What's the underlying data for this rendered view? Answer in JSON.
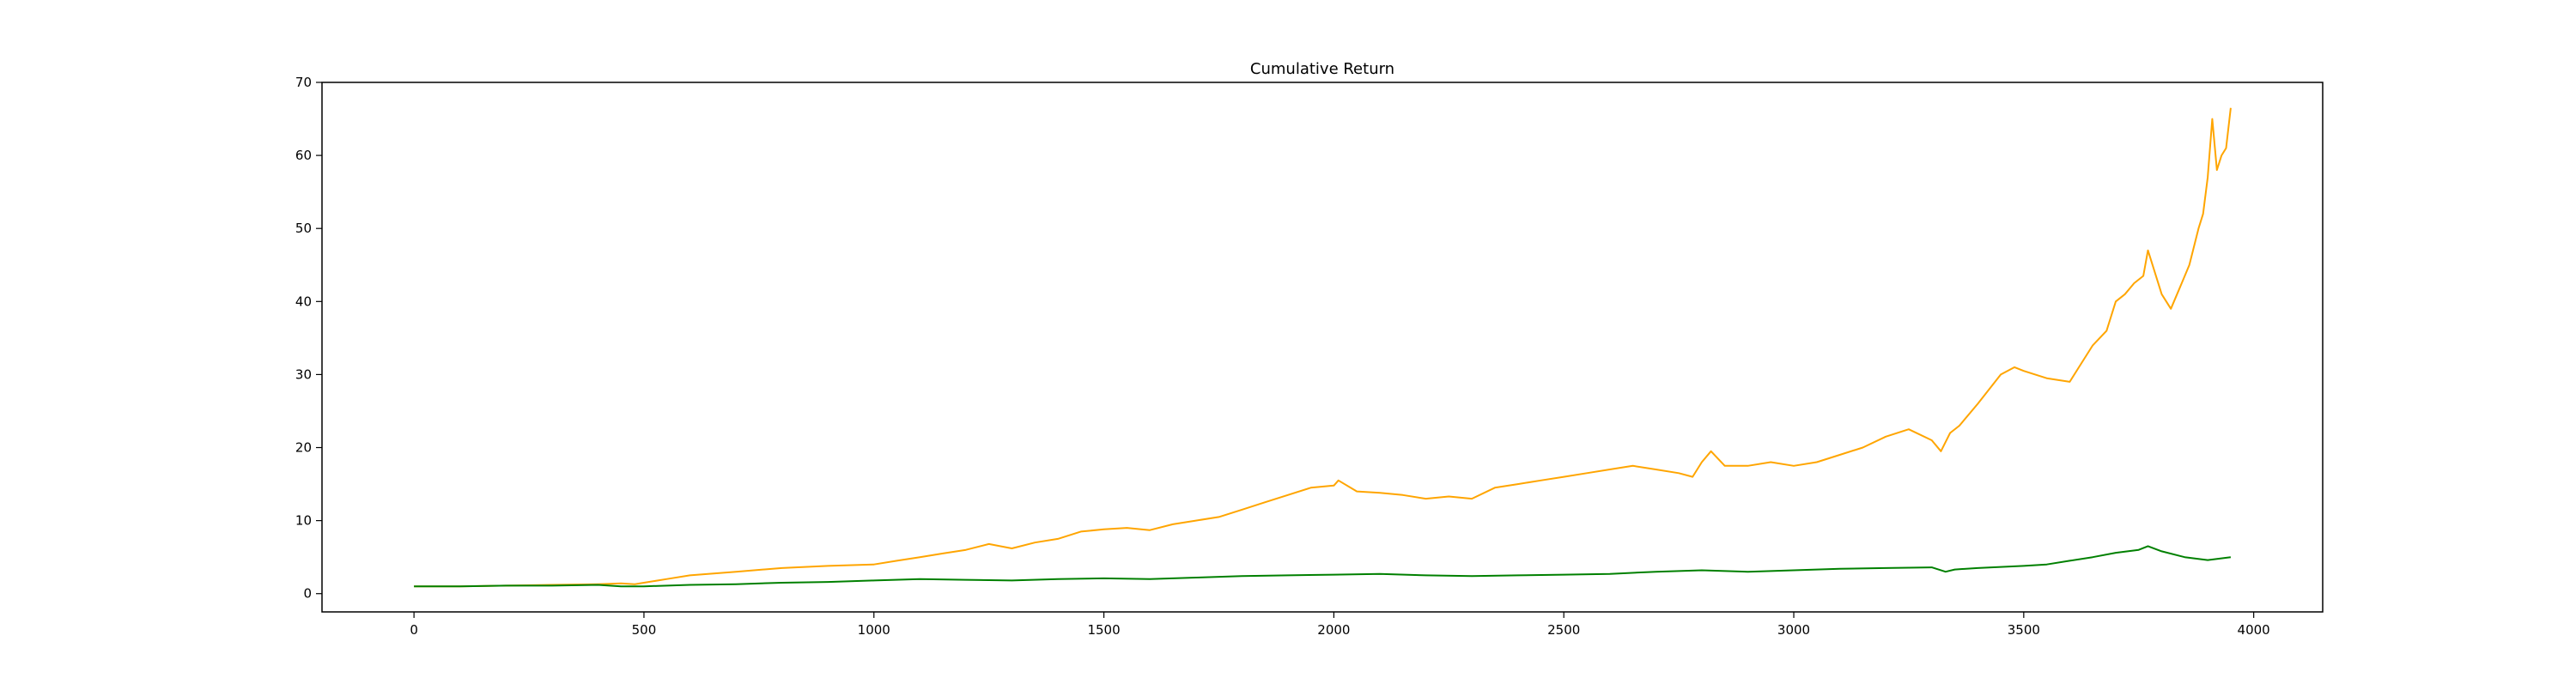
{
  "chart_data": {
    "type": "line",
    "title": "Cumulative Return",
    "xlabel": "",
    "ylabel": "",
    "xlim": [
      -200,
      4150
    ],
    "ylim": [
      -2.5,
      70
    ],
    "xticks": [
      0,
      500,
      1000,
      1500,
      2000,
      2500,
      3000,
      3500,
      4000
    ],
    "yticks": [
      0,
      10,
      20,
      30,
      40,
      50,
      60,
      70
    ],
    "xtick_labels": [
      "0",
      "500",
      "1000",
      "1500",
      "2000",
      "2500",
      "3000",
      "3500",
      "4000"
    ],
    "ytick_labels": [
      "0",
      "10",
      "20",
      "30",
      "40",
      "50",
      "60",
      "70"
    ],
    "grid": false,
    "legend": null,
    "series": [
      {
        "color": "#ffa500",
        "x": [
          0,
          100,
          200,
          300,
          400,
          450,
          480,
          500,
          550,
          600,
          700,
          800,
          900,
          1000,
          1050,
          1100,
          1150,
          1200,
          1250,
          1300,
          1350,
          1400,
          1450,
          1500,
          1550,
          1600,
          1650,
          1700,
          1750,
          1800,
          1850,
          1900,
          1950,
          2000,
          2010,
          2050,
          2100,
          2150,
          2200,
          2250,
          2300,
          2350,
          2400,
          2450,
          2500,
          2550,
          2600,
          2650,
          2700,
          2750,
          2780,
          2800,
          2820,
          2850,
          2900,
          2950,
          3000,
          3050,
          3100,
          3150,
          3200,
          3250,
          3300,
          3320,
          3340,
          3360,
          3400,
          3450,
          3480,
          3500,
          3550,
          3600,
          3620,
          3650,
          3680,
          3700,
          3720,
          3740,
          3760,
          3770,
          3800,
          3820,
          3840,
          3860,
          3880,
          3890,
          3900,
          3910,
          3920,
          3930,
          3940,
          3950
        ],
        "y": [
          1.0,
          1.0,
          1.1,
          1.2,
          1.3,
          1.4,
          1.3,
          1.5,
          2.0,
          2.5,
          3.0,
          3.5,
          3.8,
          4.0,
          4.5,
          5.0,
          5.5,
          6.0,
          6.8,
          6.2,
          7.0,
          7.5,
          8.5,
          8.8,
          9.0,
          8.7,
          9.5,
          10.0,
          10.5,
          11.5,
          12.5,
          13.5,
          14.5,
          14.8,
          15.5,
          14.0,
          13.8,
          13.5,
          13.0,
          13.3,
          13.0,
          14.5,
          15.0,
          15.5,
          16.0,
          16.5,
          17.0,
          17.5,
          17.0,
          16.5,
          16.0,
          18.0,
          19.5,
          17.5,
          17.5,
          18.0,
          17.5,
          18.0,
          19.0,
          20.0,
          21.5,
          22.5,
          21.0,
          19.5,
          22.0,
          23.0,
          26.0,
          30.0,
          31.0,
          30.5,
          29.5,
          29.0,
          31.0,
          34.0,
          36.0,
          40.0,
          41.0,
          42.5,
          43.5,
          47.0,
          41.0,
          39.0,
          42.0,
          45.0,
          50.0,
          52.0,
          57.0,
          65.0,
          58.0,
          60.0,
          61.0,
          66.5
        ]
      },
      {
        "color": "#008000",
        "x": [
          0,
          100,
          200,
          300,
          400,
          450,
          500,
          600,
          700,
          800,
          900,
          1000,
          1100,
          1200,
          1300,
          1400,
          1500,
          1600,
          1700,
          1800,
          1900,
          2000,
          2100,
          2200,
          2300,
          2400,
          2500,
          2600,
          2700,
          2800,
          2900,
          3000,
          3100,
          3200,
          3300,
          3330,
          3350,
          3400,
          3500,
          3550,
          3600,
          3650,
          3700,
          3750,
          3770,
          3800,
          3850,
          3900,
          3950
        ],
        "y": [
          1.0,
          1.0,
          1.1,
          1.1,
          1.2,
          1.0,
          1.0,
          1.2,
          1.3,
          1.5,
          1.6,
          1.8,
          2.0,
          1.9,
          1.8,
          2.0,
          2.1,
          2.0,
          2.2,
          2.4,
          2.5,
          2.6,
          2.7,
          2.5,
          2.4,
          2.5,
          2.6,
          2.7,
          3.0,
          3.2,
          3.0,
          3.2,
          3.4,
          3.5,
          3.6,
          3.0,
          3.3,
          3.5,
          3.8,
          4.0,
          4.5,
          5.0,
          5.6,
          6.0,
          6.5,
          5.8,
          5.0,
          4.6,
          5.0
        ]
      }
    ]
  }
}
